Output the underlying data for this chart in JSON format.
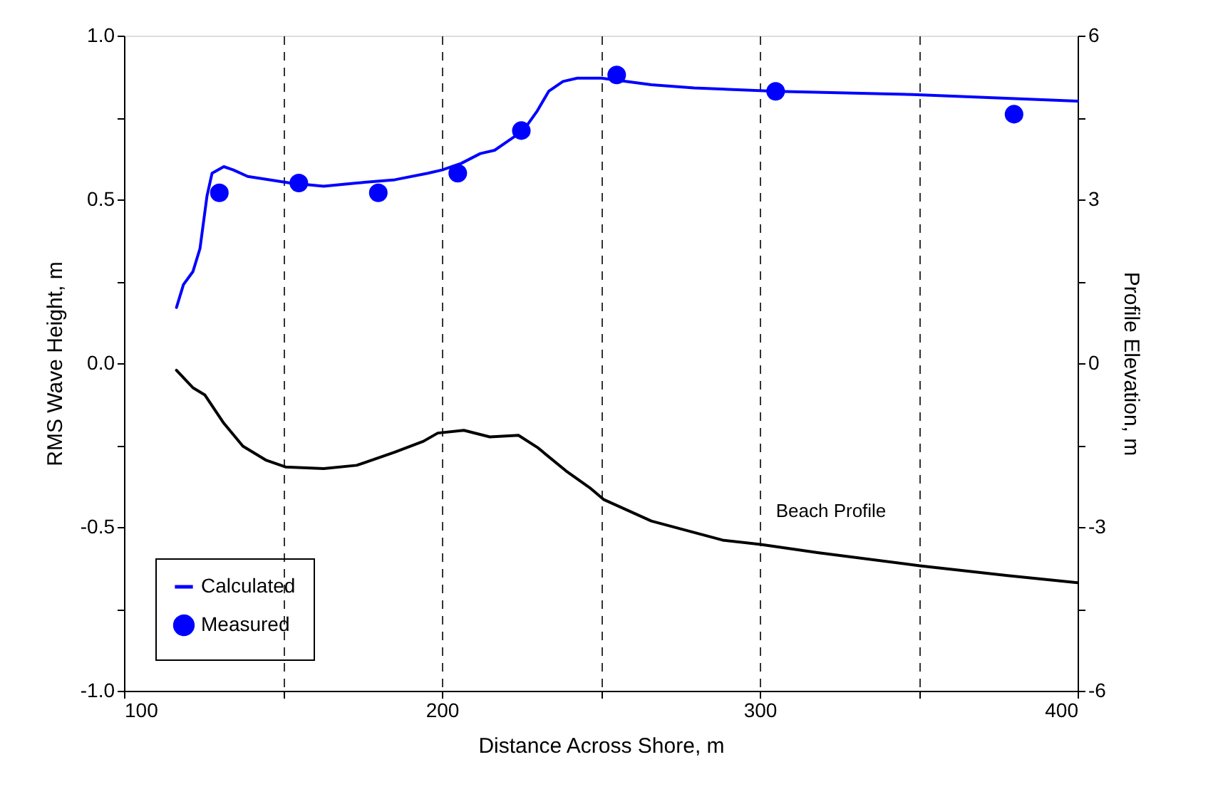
{
  "chart_data": {
    "type": "line",
    "xlabel": "Distance Across Shore, m",
    "ylabel": "RMS Wave Height, m",
    "y2label": "Profile Elevation, m",
    "xlim": [
      100,
      400
    ],
    "xticks": [
      100,
      {
        "value": 150,
        "label": null
      },
      200,
      {
        "value": 250,
        "label": null
      },
      300,
      {
        "value": 350,
        "label": null
      },
      400
    ],
    "ylim": [
      -1,
      1
    ],
    "yticks": [
      {
        "value": -1,
        "label": "-1.0"
      },
      {
        "value": -0.75,
        "label": null
      },
      -0.5,
      {
        "value": -0.25,
        "label": null
      },
      {
        "value": 0,
        "label": "0.0"
      },
      {
        "value": 0.25,
        "label": null
      },
      0.5,
      {
        "value": 0.75,
        "label": null
      },
      {
        "value": 1,
        "label": "1.0"
      }
    ],
    "y2lim": [
      -6,
      6
    ],
    "y2ticks": [
      -6,
      {
        "value": -4.5,
        "label": null
      },
      -3,
      {
        "value": -1.5,
        "label": null
      },
      0,
      {
        "value": 1.5,
        "label": null
      },
      3,
      {
        "value": 4.5,
        "label": null
      },
      6
    ],
    "grid": "x",
    "legend": "bottom left",
    "series": [
      {
        "name": "Calculated",
        "color": "#0000ff",
        "x": [
          116.5,
          118.7,
          121.7,
          123.9,
          126.1,
          127.7,
          131.4,
          134.4,
          138.9,
          152.3,
          162.8,
          173.2,
          185.2,
          195.6,
          200.1,
          206.1,
          212.1,
          216.6,
          221.1,
          225.6,
          230.0,
          233.6,
          238.1,
          242.6,
          250.2,
          265.9,
          279.4,
          305.5,
          348.1,
          400
        ],
        "values": [
          0.17,
          0.24,
          0.28,
          0.35,
          0.51,
          0.58,
          0.6,
          0.59,
          0.57,
          0.55,
          0.54,
          0.55,
          0.56,
          0.58,
          0.59,
          0.61,
          0.64,
          0.65,
          0.68,
          0.71,
          0.77,
          0.83,
          0.86,
          0.87,
          0.87,
          0.85,
          0.84,
          0.83,
          0.82,
          0.8
        ]
      },
      {
        "name": "Measured",
        "type": "scatter",
        "color": "#0000ff",
        "marker": "circle",
        "x": [
          130,
          155,
          180,
          205,
          225,
          255,
          305,
          380
        ],
        "values": [
          0.52,
          0.55,
          0.52,
          0.58,
          0.71,
          0.88,
          0.83,
          0.76
        ]
      },
      {
        "type": "line",
        "color": "#000000",
        "axis": "y2",
        "x": [
          116.5,
          121.7,
          125.4,
          131.4,
          137.4,
          144.8,
          150.8,
          162.8,
          173.2,
          185.2,
          194.2,
          198.7,
          206.9,
          215.1,
          224.1,
          230.0,
          239.0,
          246.5,
          251.0,
          265.9,
          288.3,
          300.3,
          318.2,
          350.4,
          378.0,
          400
        ],
        "values": [
          -0.13,
          -0.45,
          -0.58,
          -1.1,
          -1.52,
          -1.78,
          -1.9,
          -1.93,
          -1.87,
          -1.63,
          -1.43,
          -1.28,
          -1.23,
          -1.35,
          -1.32,
          -1.54,
          -1.97,
          -2.28,
          -2.5,
          -2.89,
          -3.24,
          -3.32,
          -3.47,
          -3.71,
          -3.89,
          -4.02
        ]
      }
    ],
    "annotations": [
      "Beach Profile"
    ]
  }
}
